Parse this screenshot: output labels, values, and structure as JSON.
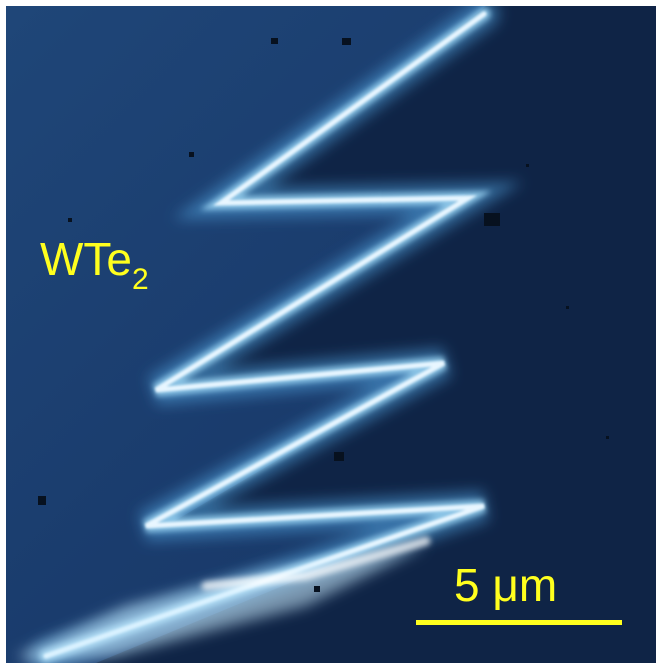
{
  "image": {
    "material": {
      "base": "WTe",
      "subscript": "2"
    },
    "scale_bar": {
      "label": "5 μm"
    }
  },
  "colors": {
    "background": "#183767",
    "dark_region": "#0f2446",
    "edge_glow": "#e8f6ff",
    "annotation": "#ffff1e"
  }
}
